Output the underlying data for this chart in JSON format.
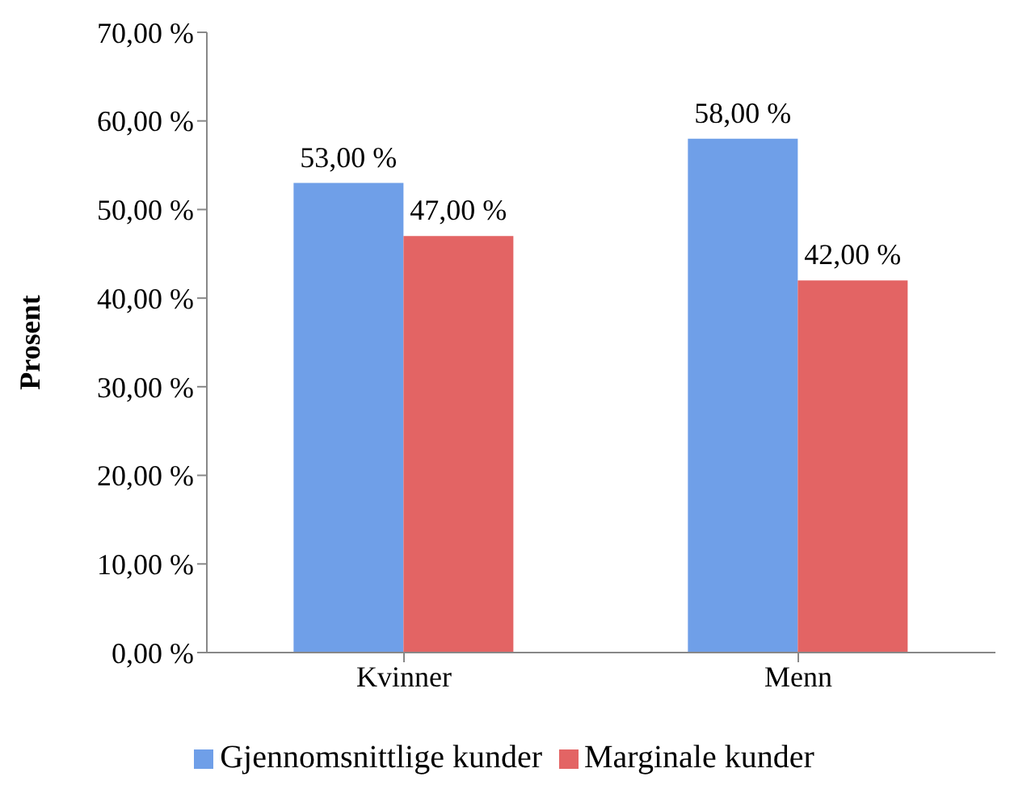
{
  "chart_data": {
    "type": "bar",
    "ylabel": "Prosent",
    "categories": [
      "Kvinner",
      "Menn"
    ],
    "series": [
      {
        "name": "Gjennomsnittlige kunder",
        "color": "#6f9fe8",
        "values": [
          53,
          58
        ],
        "value_labels": [
          "53,00 %",
          "58,00 %"
        ]
      },
      {
        "name": "Marginale kunder",
        "color": "#e36464",
        "values": [
          47,
          42
        ],
        "value_labels": [
          "47,00 %",
          "42,00 %"
        ]
      }
    ],
    "ylim": [
      0,
      70
    ],
    "yticks": [
      {
        "value": 0,
        "label": "0,00 %"
      },
      {
        "value": 10,
        "label": "10,00 %"
      },
      {
        "value": 20,
        "label": "20,00 %"
      },
      {
        "value": 30,
        "label": "30,00 %"
      },
      {
        "value": 40,
        "label": "40,00 %"
      },
      {
        "value": 50,
        "label": "50,00 %"
      },
      {
        "value": 60,
        "label": "60,00 %"
      },
      {
        "value": 70,
        "label": "70,00 %"
      }
    ],
    "grid": false,
    "legend": "bottom"
  }
}
